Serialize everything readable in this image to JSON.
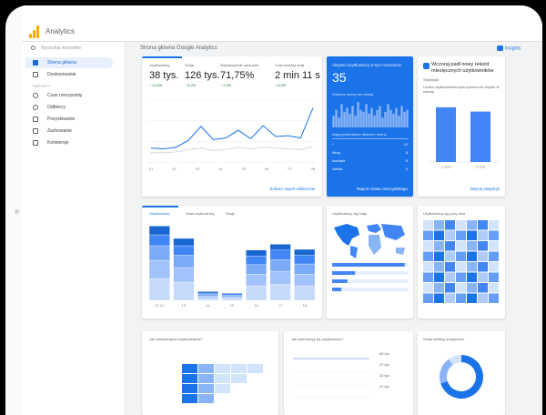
{
  "app": {
    "title": "Analytics"
  },
  "sidebar": {
    "search_placeholder": "Wyszukaj wszystkie",
    "items": [
      {
        "label": "Strona główna",
        "active": true
      },
      {
        "label": "Dostosowanie"
      }
    ],
    "section_label": "RAPORTY",
    "reports": [
      {
        "label": "Czas rzeczywisty"
      },
      {
        "label": "Odbiorcy"
      },
      {
        "label": "Pozyskiwanie"
      },
      {
        "label": "Zachowanie"
      },
      {
        "label": "Konwersje"
      }
    ]
  },
  "header": {
    "title": "Strona główna Google Analytics",
    "insights_label": "Insights"
  },
  "kpi": {
    "items": [
      {
        "label": "Użytkownicy",
        "value": "38 tys.",
        "delta": "↑ 11,5%"
      },
      {
        "label": "Sesje",
        "value": "126 tys.",
        "delta": "↑ 8,2%"
      },
      {
        "label": "Współczynnik odrzuceń",
        "value": "71,75%",
        "delta": "↓ 2,0%"
      },
      {
        "label": "Czas trwania sesji",
        "value": "2 min 11 s",
        "delta": "↑ 5,0%"
      }
    ],
    "x_ticks": [
      "01",
      "02",
      "03",
      "04",
      "05",
      "06",
      "07",
      "08"
    ],
    "footer_link": "Zobacz raport odbiorców"
  },
  "realtime": {
    "title": "Aktywni użytkownicy w tym momencie",
    "value": "35",
    "subtitle": "Odsłony strony na minutę",
    "table_header": "Najpopularniejsze aktywne strony",
    "rows": [
      {
        "page": "/",
        "count": "12"
      },
      {
        "page": "/blog",
        "count": "8"
      },
      {
        "page": "/kontakt",
        "count": "5"
      },
      {
        "page": "/oferta",
        "count": "4"
      }
    ],
    "footer_link": "Raport czasu rzeczywistego"
  },
  "insight": {
    "title": "Wczoraj padł nowy rekord miesięcznych użytkowników",
    "meta": "Statystyki",
    "text": "Liczba użytkowników była wyższa niż zwykle w sobotę",
    "bar_values": [
      "2 575",
      "2 375"
    ],
    "footer_link": "Więcej statystyk"
  },
  "stacked": {
    "tabs": [
      "Użytkownicy",
      "Nowi użytkownicy",
      "Sesje"
    ],
    "x_ticks": [
      "12 Cz",
      "13",
      "14",
      "15",
      "16",
      "17",
      "18"
    ]
  },
  "geo": {
    "title": "Użytkownicy wg kraju"
  },
  "heatmap": {
    "title": "Użytkownicy wg pory dnia"
  },
  "bottom": {
    "card1_title": "Jak zatrzymujesz użytkowników?",
    "card2_title": "Jak zachowują się użytkownicy?",
    "card2_values": [
      "66 tys.",
      "47 tys.",
      "32 tys.",
      "21 tys."
    ],
    "card3_title": "Sesje według urządzenia"
  },
  "chart_data": [
    {
      "type": "line",
      "series": [
        {
          "values": [
            18,
            17,
            19,
            28,
            46,
            29,
            31,
            41,
            30,
            47,
            33,
            34,
            31,
            70
          ]
        },
        {
          "values": [
            12,
            12,
            13,
            16,
            18,
            15,
            16,
            19,
            17,
            19,
            18,
            17,
            16,
            20
          ]
        }
      ]
    },
    {
      "type": "bar",
      "values": [
        6,
        9,
        5,
        12,
        8,
        10,
        7,
        11,
        6,
        13,
        9,
        8,
        12,
        7,
        10,
        6,
        9,
        11,
        5,
        8,
        12,
        9,
        7,
        10,
        6,
        11,
        8,
        9
      ]
    },
    {
      "type": "bar",
      "categories": [
        "2 575",
        "2 375"
      ],
      "values": [
        2575,
        2375
      ]
    },
    {
      "type": "bar",
      "categories": [
        "12 Cz",
        "13",
        "14",
        "15",
        "16",
        "17",
        "18"
      ],
      "series": [
        {
          "values": [
            30,
            25,
            3,
            3,
            20,
            22,
            20
          ]
        },
        {
          "values": [
            25,
            20,
            3,
            2,
            16,
            18,
            16
          ]
        },
        {
          "values": [
            20,
            17,
            2,
            2,
            13,
            16,
            14
          ]
        },
        {
          "values": [
            15,
            13,
            2,
            2,
            12,
            13,
            12
          ]
        },
        {
          "values": [
            12,
            10,
            2,
            1,
            8,
            8,
            8
          ]
        }
      ]
    },
    {
      "type": "bar",
      "values": [
        95,
        30,
        20,
        12
      ]
    },
    {
      "type": "heatmap",
      "rows": 8,
      "cols": 7
    },
    {
      "type": "heatmap",
      "rows": 4,
      "cols": 5
    },
    {
      "type": "pie",
      "values": [
        70,
        20,
        10
      ]
    }
  ]
}
